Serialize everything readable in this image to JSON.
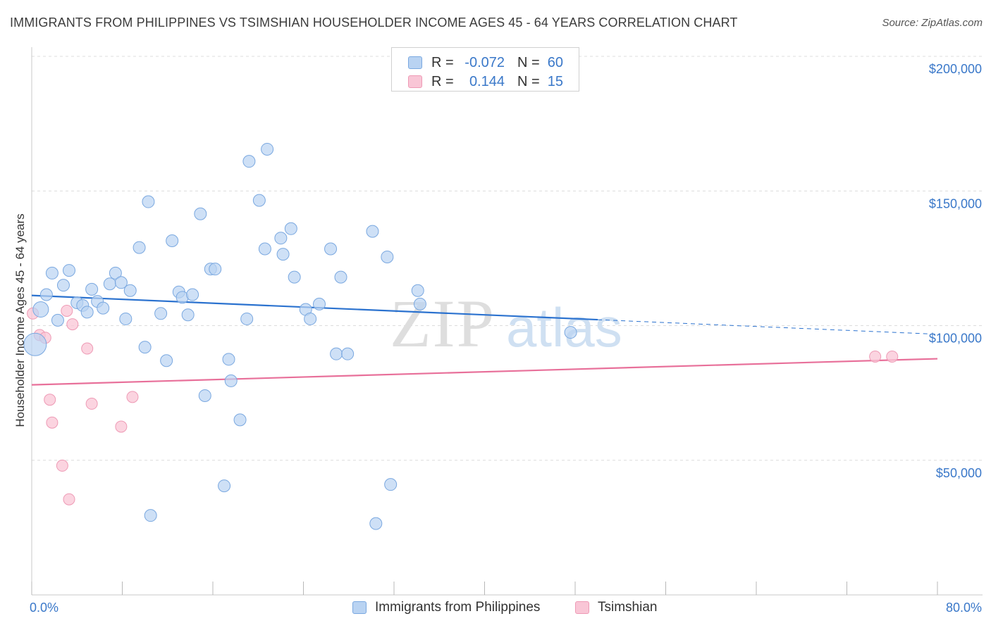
{
  "title": "IMMIGRANTS FROM PHILIPPINES VS TSIMSHIAN HOUSEHOLDER INCOME AGES 45 - 64 YEARS CORRELATION CHART",
  "source": "Source: ZipAtlas.com",
  "watermark": {
    "zip": "ZIP",
    "atlas": "atlas"
  },
  "colors": {
    "blue_fill": "#b9d3f2",
    "blue_stroke": "#7aa8e0",
    "blue_line": "#2b72cf",
    "pink_fill": "#f9c6d6",
    "pink_stroke": "#ee9ab5",
    "pink_line": "#e8709a",
    "grid": "#dcdcdc",
    "axis_text": "#3a78c9"
  },
  "legend_top": {
    "rows": [
      {
        "r_label": "R =",
        "r_value": "-0.072",
        "n_label": "N =",
        "n_value": "60"
      },
      {
        "r_label": "R =",
        "r_value": "0.144",
        "n_label": "N =",
        "n_value": "15"
      }
    ]
  },
  "legend_bottom": {
    "items": [
      {
        "label": "Immigrants from Philippines"
      },
      {
        "label": "Tsimshian"
      }
    ]
  },
  "chart_data": {
    "type": "scatter",
    "title": "IMMIGRANTS FROM PHILIPPINES VS TSIMSHIAN HOUSEHOLDER INCOME AGES 45 - 64 YEARS CORRELATION CHART",
    "xlabel": "",
    "ylabel": "Householder Income Ages 45 - 64 years",
    "xlim": [
      0,
      80
    ],
    "ylim": [
      0,
      205000
    ],
    "x_tick_labels": [
      "0.0%",
      "80.0%"
    ],
    "y_ticks": [
      50000,
      100000,
      150000,
      200000
    ],
    "y_tick_labels": [
      "$50,000",
      "$100,000",
      "$150,000",
      "$200,000"
    ],
    "grid": true,
    "legend_position": "top-center",
    "series": [
      {
        "name": "Immigrants from Philippines",
        "r": -0.072,
        "n": 60,
        "trend": {
          "x0": 0,
          "y0": 111200,
          "x1": 50,
          "y1": 102200,
          "x_dash_end": 80,
          "y_dash_end": 96800
        },
        "points": [
          [
            0.3,
            93000
          ],
          [
            0.8,
            106000
          ],
          [
            1.3,
            111500
          ],
          [
            1.8,
            119500
          ],
          [
            2.3,
            102000
          ],
          [
            2.8,
            115000
          ],
          [
            3.3,
            120500
          ],
          [
            4.0,
            108500
          ],
          [
            4.5,
            107500
          ],
          [
            4.9,
            105000
          ],
          [
            5.3,
            113500
          ],
          [
            5.8,
            109000
          ],
          [
            6.3,
            106500
          ],
          [
            6.9,
            115500
          ],
          [
            7.4,
            119500
          ],
          [
            7.9,
            116000
          ],
          [
            8.3,
            102500
          ],
          [
            8.7,
            113000
          ],
          [
            9.5,
            129000
          ],
          [
            10.0,
            92000
          ],
          [
            10.3,
            146000
          ],
          [
            11.4,
            104500
          ],
          [
            11.9,
            87000
          ],
          [
            12.4,
            131500
          ],
          [
            13.0,
            112500
          ],
          [
            13.3,
            110500
          ],
          [
            13.8,
            104000
          ],
          [
            14.2,
            111500
          ],
          [
            14.9,
            141500
          ],
          [
            15.3,
            74000
          ],
          [
            15.8,
            121000
          ],
          [
            16.2,
            121000
          ],
          [
            17.0,
            40500
          ],
          [
            17.4,
            87500
          ],
          [
            17.6,
            79500
          ],
          [
            18.4,
            65000
          ],
          [
            19.0,
            102500
          ],
          [
            19.2,
            161000
          ],
          [
            20.1,
            146500
          ],
          [
            20.6,
            128500
          ],
          [
            20.8,
            165500
          ],
          [
            22.0,
            132500
          ],
          [
            22.2,
            126500
          ],
          [
            22.9,
            136000
          ],
          [
            23.2,
            118000
          ],
          [
            24.2,
            106000
          ],
          [
            24.6,
            102500
          ],
          [
            25.4,
            108000
          ],
          [
            26.4,
            128500
          ],
          [
            26.9,
            89500
          ],
          [
            27.3,
            118000
          ],
          [
            27.9,
            89500
          ],
          [
            30.1,
            135000
          ],
          [
            30.4,
            26500
          ],
          [
            31.4,
            125500
          ],
          [
            31.7,
            41000
          ],
          [
            34.1,
            113000
          ],
          [
            34.3,
            108000
          ],
          [
            47.6,
            97500
          ],
          [
            10.5,
            29500
          ]
        ]
      },
      {
        "name": "Tsimshian",
        "r": 0.144,
        "n": 15,
        "trend": {
          "x0": 0,
          "y0": 78000,
          "x1": 80,
          "y1": 87700
        },
        "points": [
          [
            0.1,
            104500
          ],
          [
            0.7,
            96500
          ],
          [
            1.2,
            95500
          ],
          [
            1.6,
            72500
          ],
          [
            1.8,
            64000
          ],
          [
            2.7,
            48000
          ],
          [
            3.1,
            105500
          ],
          [
            3.3,
            35500
          ],
          [
            3.6,
            100500
          ],
          [
            4.9,
            91500
          ],
          [
            5.3,
            71000
          ],
          [
            7.9,
            62500
          ],
          [
            8.9,
            73500
          ],
          [
            74.5,
            88500
          ],
          [
            76.0,
            88500
          ]
        ]
      }
    ]
  }
}
